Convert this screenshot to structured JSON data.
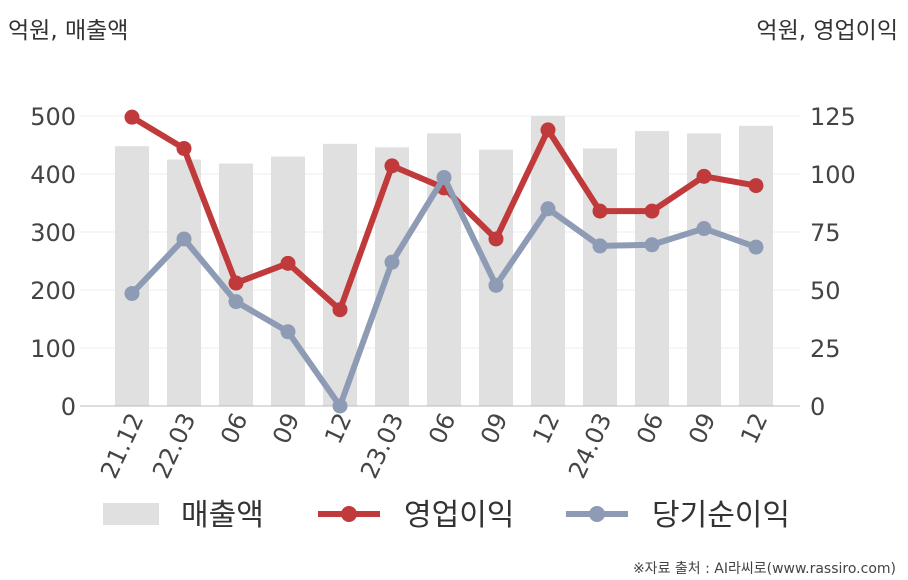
{
  "chart_data": {
    "type": "bar+line",
    "left_unit_label": "억원, 매출액",
    "right_unit_label": "억원, 영업이익",
    "categories": [
      "21.12",
      "22.03",
      "06",
      "09",
      "12",
      "23.03",
      "06",
      "09",
      "12",
      "24.03",
      "06",
      "09",
      "12"
    ],
    "y_left": {
      "min": 0,
      "max": 500,
      "ticks": [
        0,
        100,
        200,
        300,
        400,
        500
      ]
    },
    "y_right": {
      "min": 0,
      "max": 125,
      "ticks": [
        0,
        25,
        50,
        75,
        100,
        125
      ]
    },
    "grid": true,
    "legend_position": "bottom",
    "series": [
      {
        "name": "매출액",
        "type": "bar",
        "axis": "left",
        "color": "#e0e0e0",
        "values": [
          448,
          425,
          418,
          430,
          452,
          446,
          470,
          442,
          500,
          444,
          474,
          470,
          483
        ]
      },
      {
        "name": "영업이익",
        "type": "line",
        "axis": "right",
        "color": "#c0393b",
        "values": [
          124.5,
          111,
          53,
          61.5,
          41.5,
          103.5,
          94,
          72,
          119,
          84,
          84,
          99,
          95
        ]
      },
      {
        "name": "당기순이익",
        "type": "line",
        "axis": "right",
        "color": "#8e9bb5",
        "values": [
          48.5,
          72,
          45,
          32,
          0,
          62,
          98.5,
          52,
          85,
          69,
          69.5,
          76.5,
          68.5
        ]
      }
    ],
    "source_note": "※자료 출처 : AI라씨로(www.rassiro.com)"
  }
}
